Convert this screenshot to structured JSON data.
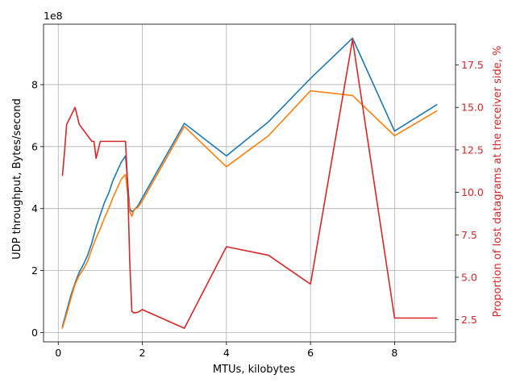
{
  "chart_data": {
    "type": "line",
    "xlabel": "MTUs, kilobytes",
    "ylabel": "UDP throughput, Bytes/second",
    "y2label": "Proportion of lost datagrams at the receiver side, %",
    "y_offset_label": "1e8",
    "xlim": [
      -0.35,
      9.45
    ],
    "ylim": [
      -0.3,
      9.95
    ],
    "y2lim": [
      1.2,
      19.9
    ],
    "grid": true,
    "x_ticks": [
      0,
      2,
      4,
      6,
      8
    ],
    "y_ticks": [
      0,
      2,
      4,
      6,
      8
    ],
    "y2_ticks": [
      2.5,
      5.0,
      7.5,
      10.0,
      12.5,
      15.0,
      17.5
    ],
    "x_tick_labels": [
      "0",
      "2",
      "4",
      "6",
      "8"
    ],
    "y_tick_labels": [
      "0",
      "2",
      "4",
      "6",
      "8"
    ],
    "y2_tick_labels": [
      "2.5",
      "5.0",
      "7.5",
      "10.0",
      "12.5",
      "15.0",
      "17.5"
    ],
    "series": [
      {
        "axis": "left",
        "color": "#1f77b4",
        "x": [
          0.1,
          0.2,
          0.3,
          0.4,
          0.5,
          0.6,
          0.7,
          0.8,
          0.9,
          1.0,
          1.1,
          1.2,
          1.3,
          1.4,
          1.5,
          1.6,
          1.7,
          1.75,
          1.8,
          1.9,
          2.0,
          3.0,
          4.0,
          5.0,
          6.0,
          7.0,
          7.3,
          8.0,
          9.0
        ],
        "y": [
          0.2,
          0.7,
          1.2,
          1.6,
          1.95,
          2.2,
          2.5,
          2.9,
          3.4,
          3.8,
          4.2,
          4.5,
          4.9,
          5.2,
          5.5,
          5.7,
          4.0,
          3.9,
          3.95,
          4.1,
          4.35,
          6.75,
          5.7,
          6.8,
          8.2,
          9.5,
          8.6,
          6.5,
          7.35
        ]
      },
      {
        "axis": "left",
        "color": "#ff7f0e",
        "x": [
          0.1,
          0.2,
          0.3,
          0.4,
          0.5,
          0.6,
          0.7,
          0.8,
          0.9,
          1.0,
          1.1,
          1.2,
          1.3,
          1.4,
          1.5,
          1.6,
          1.7,
          1.75,
          1.8,
          1.9,
          2.0,
          3.0,
          4.0,
          5.0,
          6.0,
          7.0,
          8.0,
          9.0
        ],
        "y": [
          0.15,
          0.6,
          1.1,
          1.55,
          1.85,
          2.05,
          2.3,
          2.7,
          3.05,
          3.35,
          3.7,
          4.0,
          4.35,
          4.65,
          4.95,
          5.1,
          3.9,
          3.75,
          3.95,
          4.05,
          4.25,
          6.65,
          5.35,
          6.35,
          7.8,
          7.65,
          6.35,
          7.15
        ]
      },
      {
        "axis": "right",
        "color": "#d62728",
        "x": [
          0.1,
          0.15,
          0.2,
          0.4,
          0.5,
          0.8,
          0.85,
          0.9,
          1.0,
          1.6,
          1.65,
          1.7,
          1.75,
          1.8,
          1.9,
          2.0,
          3.0,
          4.0,
          5.0,
          6.0,
          7.0,
          8.0,
          9.0
        ],
        "y": [
          11.0,
          12.4,
          14.0,
          15.0,
          14.0,
          13.0,
          13.0,
          12.0,
          13.0,
          13.0,
          10.5,
          6.0,
          3.0,
          2.9,
          2.95,
          3.1,
          2.0,
          6.8,
          6.3,
          4.6,
          19.0,
          2.6,
          2.6
        ]
      }
    ]
  }
}
